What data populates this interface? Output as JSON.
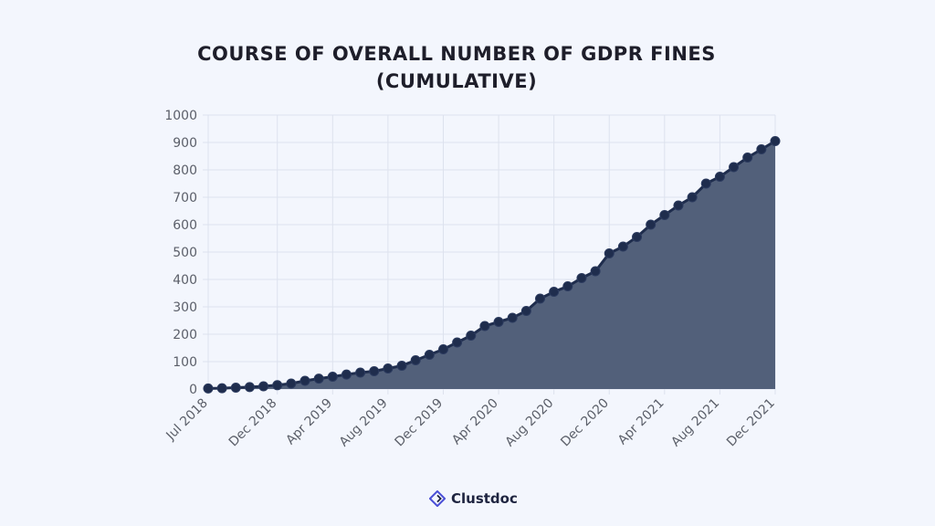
{
  "title_line1": "COURSE OF OVERALL NUMBER OF GDPR FINES",
  "title_line2": "(CUMULATIVE)",
  "brand": {
    "name": "Clustdoc",
    "icon": "diamond-logo-icon"
  },
  "colors": {
    "fill": "#52607a",
    "line": "#1f2d4d",
    "point": "#1f2d4d",
    "grid": "#dde2ee",
    "text": "#5b5f69",
    "title": "#1e1e2a"
  },
  "chart_data": {
    "type": "area",
    "title": "COURSE OF OVERALL NUMBER OF GDPR FINES (CUMULATIVE)",
    "xlabel": "",
    "ylabel": "",
    "ylim": [
      0,
      1000
    ],
    "yticks": [
      0,
      100,
      200,
      300,
      400,
      500,
      600,
      700,
      800,
      900,
      1000
    ],
    "x": [
      "Jul 2018",
      "Aug 2018",
      "Sep 2018",
      "Oct 2018",
      "Nov 2018",
      "Dec 2018",
      "Jan 2019",
      "Feb 2019",
      "Mar 2019",
      "Apr 2019",
      "May 2019",
      "Jun 2019",
      "Jul 2019",
      "Aug 2019",
      "Sep 2019",
      "Oct 2019",
      "Nov 2019",
      "Dec 2019",
      "Jan 2020",
      "Feb 2020",
      "Mar 2020",
      "Apr 2020",
      "May 2020",
      "Jun 2020",
      "Jul 2020",
      "Aug 2020",
      "Sep 2020",
      "Oct 2020",
      "Nov 2020",
      "Dec 2020",
      "Jan 2021",
      "Feb 2021",
      "Mar 2021",
      "Apr 2021",
      "May 2021",
      "Jun 2021",
      "Jul 2021",
      "Aug 2021",
      "Sep 2021",
      "Oct 2021",
      "Nov 2021",
      "Dec 2021"
    ],
    "xtick_labels": [
      "Jul 2018",
      "Dec 2018",
      "Apr 2019",
      "Aug 2019",
      "Dec 2019",
      "Apr 2020",
      "Aug 2020",
      "Dec 2020",
      "Apr 2021",
      "Aug 2021",
      "Dec 2021"
    ],
    "values": [
      2,
      3,
      5,
      7,
      10,
      14,
      20,
      30,
      38,
      45,
      53,
      60,
      65,
      75,
      85,
      105,
      125,
      145,
      170,
      195,
      230,
      245,
      260,
      285,
      330,
      355,
      375,
      405,
      430,
      495,
      520,
      555,
      600,
      635,
      670,
      700,
      750,
      775,
      810,
      845,
      875,
      905
    ],
    "grid": true,
    "legend": "none"
  }
}
